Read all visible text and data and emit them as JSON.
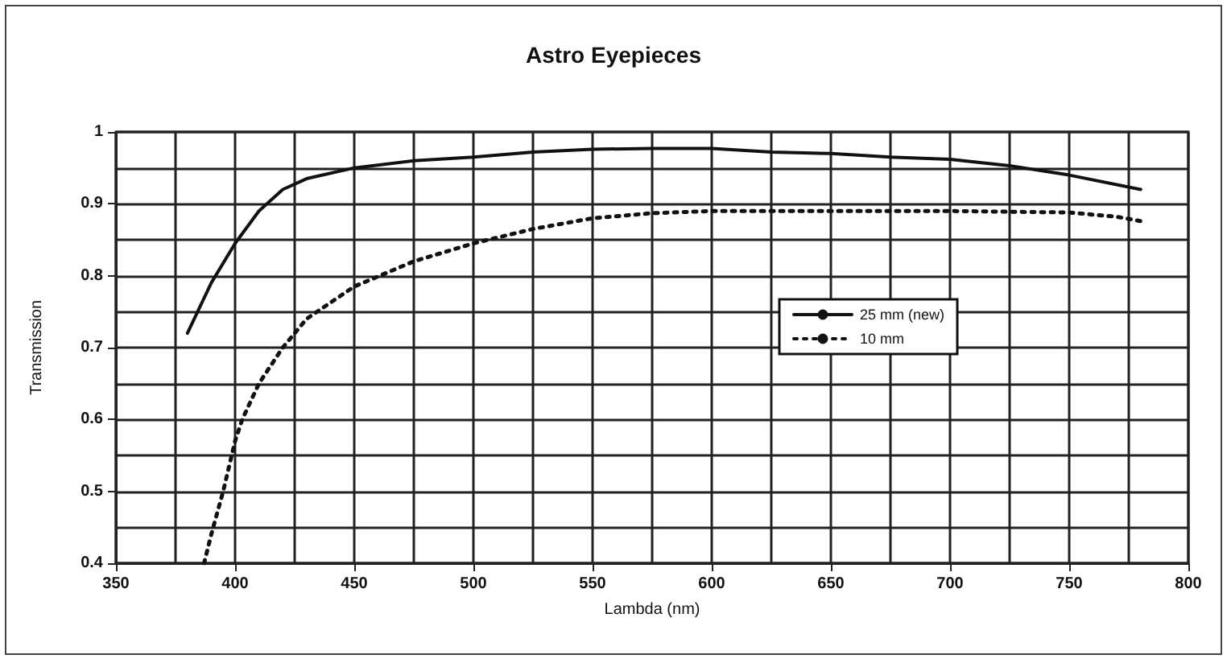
{
  "chart_data": {
    "type": "line",
    "title": "Astro Eyepieces",
    "xlabel": "Lambda (nm)",
    "ylabel": "Transmission",
    "xlim": [
      350,
      800
    ],
    "xticks": [
      350,
      400,
      450,
      500,
      550,
      600,
      650,
      700,
      750,
      800
    ],
    "ylim": [
      0.4,
      1
    ],
    "yticks": [
      0.4,
      0.5,
      0.6,
      0.7,
      0.8,
      0.9,
      1
    ],
    "grid": true,
    "legend": "right",
    "marker": "none",
    "series": [
      {
        "name": "25 mm (new)",
        "color": "#111111",
        "line_style": "solid",
        "x": [
          380,
          390,
          400,
          410,
          420,
          430,
          450,
          475,
          500,
          525,
          550,
          575,
          600,
          625,
          650,
          675,
          700,
          725,
          750,
          780
        ],
        "values": [
          0.72,
          0.79,
          0.845,
          0.89,
          0.92,
          0.935,
          0.95,
          0.96,
          0.965,
          0.972,
          0.976,
          0.977,
          0.977,
          0.972,
          0.97,
          0.965,
          0.962,
          0.953,
          0.94,
          0.92
        ]
      },
      {
        "name": "10 mm",
        "color": "#111111",
        "line_style": "dotted",
        "x": [
          387,
          390,
          395,
          400,
          403,
          410,
          420,
          430,
          450,
          475,
          500,
          525,
          550,
          575,
          600,
          650,
          700,
          750,
          770,
          780
        ],
        "values": [
          0.4,
          0.44,
          0.5,
          0.57,
          0.6,
          0.65,
          0.7,
          0.74,
          0.785,
          0.82,
          0.845,
          0.865,
          0.88,
          0.887,
          0.89,
          0.89,
          0.89,
          0.888,
          0.882,
          0.876
        ]
      }
    ]
  }
}
